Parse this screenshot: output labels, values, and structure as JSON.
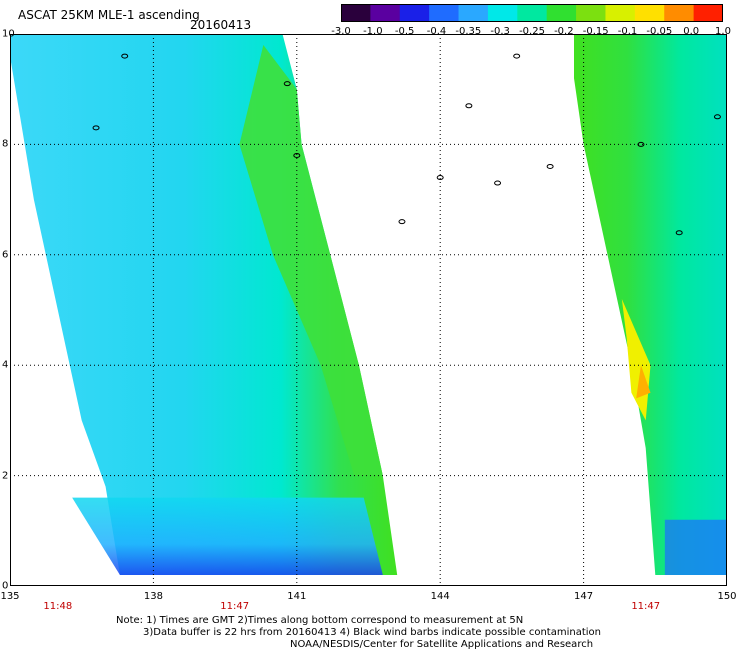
{
  "header": {
    "title": "ASCAT 25KM MLE-1 ascending",
    "date": "20160413"
  },
  "colorbar": {
    "labels": [
      "-3.0",
      "-1.0",
      "-0.5",
      "-0.4",
      "-0.35",
      "-0.3",
      "-0.25",
      "-0.2",
      "-0.15",
      "-0.1",
      "-0.05",
      "0.0",
      "1.0"
    ],
    "colors": [
      "#2a003c",
      "#5a00a0",
      "#1a20e8",
      "#1f6cff",
      "#2aa8ff",
      "#00e8e8",
      "#00e8a0",
      "#30e030",
      "#7ce010",
      "#d8f000",
      "#ffe000",
      "#ff8c00",
      "#ff2000"
    ]
  },
  "axes": {
    "y_ticks": [
      "0",
      "2",
      "4",
      "6",
      "8",
      "10"
    ],
    "x_ticks": [
      "135",
      "138",
      "141",
      "144",
      "147",
      "150"
    ]
  },
  "times": [
    "11:48",
    "11:47",
    "11:47"
  ],
  "footer": {
    "line1": "Note: 1) Times are GMT 2)Times along bottom correspond to measurement at 5N",
    "line2": "3)Data buffer is 22 hrs from 20160413 4) Black wind barbs indicate possible contamination",
    "line3": "NOAA/NESDIS/Center for Satellite Applications and Research"
  },
  "map": {
    "lon_range": [
      135,
      150
    ],
    "lat_range": [
      0,
      10
    ],
    "swaths": [
      {
        "name": "swath-west",
        "west_edge": [
          [
            135.0,
            10
          ],
          [
            135.0,
            9.6
          ],
          [
            135.5,
            7
          ],
          [
            136.5,
            3
          ],
          [
            137.0,
            1.8
          ],
          [
            137.3,
            0.2
          ]
        ],
        "east_edge": [
          [
            140.7,
            10
          ],
          [
            141.0,
            9.0
          ],
          [
            141.1,
            8.0
          ],
          [
            141.7,
            6.0
          ],
          [
            142.3,
            4.0
          ],
          [
            142.8,
            2.0
          ],
          [
            143.1,
            0.2
          ]
        ]
      },
      {
        "name": "swath-east",
        "west_edge": [
          [
            146.8,
            10
          ],
          [
            146.8,
            9.2
          ],
          [
            147.0,
            8.0
          ],
          [
            147.5,
            6.0
          ],
          [
            148.0,
            4.0
          ],
          [
            148.3,
            2.5
          ],
          [
            148.5,
            0.2
          ]
        ],
        "east_edge": [
          [
            150,
            10
          ],
          [
            150,
            0.2
          ]
        ]
      }
    ]
  }
}
